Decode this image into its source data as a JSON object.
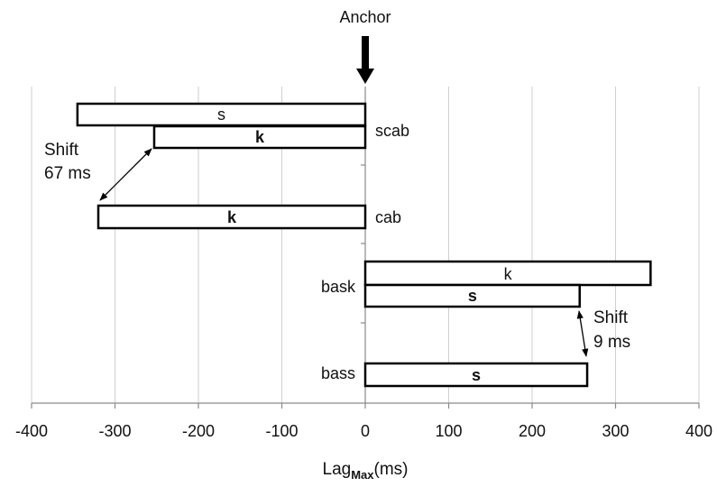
{
  "chart_data": {
    "type": "bar",
    "orientation": "horizontal",
    "xlabel": {
      "main": "Lag",
      "subscript": "Max",
      "unit": "(ms)"
    },
    "xlim": [
      -400,
      400
    ],
    "xticks": [
      -400,
      -300,
      -200,
      -100,
      0,
      100,
      200,
      300,
      400
    ],
    "grid": "vertical",
    "anchor": {
      "label": "Anchor",
      "x": 0
    },
    "bars": [
      {
        "word": "scab",
        "segment": "s",
        "bold": false,
        "start": -345,
        "end": 0
      },
      {
        "word": "scab",
        "segment": "k",
        "bold": true,
        "start": -253,
        "end": 0
      },
      {
        "word": "cab",
        "segment": "k",
        "bold": true,
        "start": -320,
        "end": 0
      },
      {
        "word": "bask",
        "segment": "k",
        "bold": false,
        "start": 0,
        "end": 342
      },
      {
        "word": "bask",
        "segment": "s",
        "bold": true,
        "start": 0,
        "end": 257
      },
      {
        "word": "bass",
        "segment": "s",
        "bold": true,
        "start": 0,
        "end": 266
      }
    ],
    "word_labels": [
      "scab",
      "cab",
      "bask",
      "bass"
    ],
    "annotations": [
      {
        "line1": "Shift",
        "line2": "67 ms"
      },
      {
        "line1": "Shift",
        "line2": "9 ms"
      }
    ]
  }
}
